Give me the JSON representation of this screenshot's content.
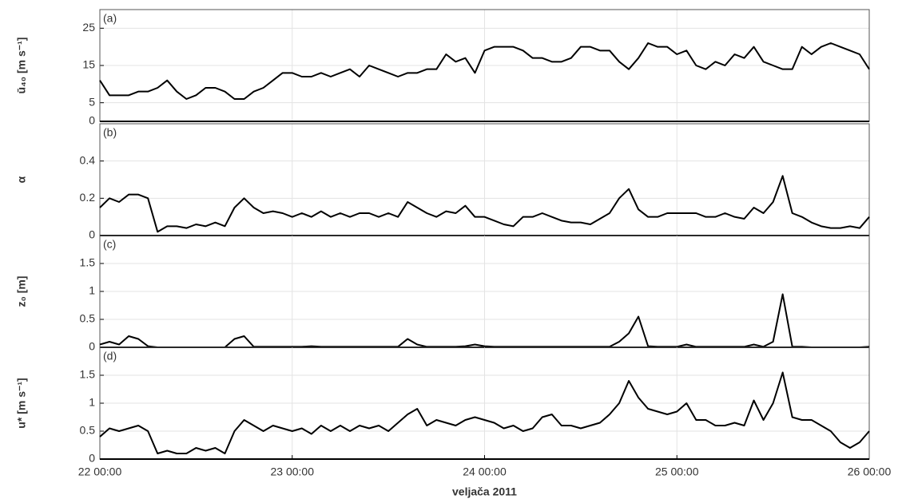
{
  "chart_data": [
    {
      "type": "line",
      "panel_label": "(a)",
      "ylabel": "ū₄₀ [m s⁻¹]",
      "color": "#000000",
      "grid": true,
      "ylim": [
        0,
        30
      ],
      "yticks": [
        0,
        5,
        15,
        25
      ],
      "xlim": [
        22,
        26
      ],
      "xticks": [
        22,
        23,
        24,
        25,
        26
      ],
      "x": [
        22,
        22.05,
        22.1,
        22.15,
        22.2,
        22.25,
        22.3,
        22.35,
        22.4,
        22.45,
        22.5,
        22.55,
        22.6,
        22.65,
        22.7,
        22.75,
        22.8,
        22.85,
        22.9,
        22.95,
        23,
        23.05,
        23.1,
        23.15,
        23.2,
        23.25,
        23.3,
        23.35,
        23.4,
        23.45,
        23.5,
        23.55,
        23.6,
        23.65,
        23.7,
        23.75,
        23.8,
        23.85,
        23.9,
        23.95,
        24,
        24.05,
        24.1,
        24.15,
        24.2,
        24.25,
        24.3,
        24.35,
        24.4,
        24.45,
        24.5,
        24.55,
        24.6,
        24.65,
        24.7,
        24.75,
        24.8,
        24.85,
        24.9,
        24.95,
        25,
        25.05,
        25.1,
        25.15,
        25.2,
        25.25,
        25.3,
        25.35,
        25.4,
        25.45,
        25.5,
        25.55,
        25.6,
        25.65,
        25.7,
        25.75,
        25.8,
        25.85,
        25.9,
        25.95,
        26
      ],
      "values": [
        11,
        7,
        7,
        7,
        8,
        8,
        9,
        11,
        8,
        6,
        7,
        9,
        9,
        8,
        6,
        6,
        8,
        9,
        11,
        13,
        13,
        12,
        12,
        13,
        12,
        13,
        14,
        12,
        15,
        14,
        13,
        12,
        13,
        13,
        14,
        14,
        18,
        16,
        17,
        13,
        19,
        20,
        20,
        20,
        19,
        17,
        17,
        16,
        16,
        17,
        20,
        20,
        19,
        19,
        16,
        14,
        17,
        21,
        20,
        20,
        18,
        19,
        15,
        14,
        16,
        15,
        18,
        17,
        20,
        16,
        15,
        14,
        14,
        20,
        18,
        20,
        21,
        20,
        19,
        18,
        14
      ]
    },
    {
      "type": "line",
      "panel_label": "(b)",
      "ylabel": "α",
      "color": "#000000",
      "grid": true,
      "ylim": [
        0,
        0.6
      ],
      "yticks": [
        0,
        0.2,
        0.4
      ],
      "xlim": [
        22,
        26
      ],
      "xticks": [
        22,
        23,
        24,
        25,
        26
      ],
      "x": [
        22,
        22.05,
        22.1,
        22.15,
        22.2,
        22.25,
        22.3,
        22.35,
        22.4,
        22.45,
        22.5,
        22.55,
        22.6,
        22.65,
        22.7,
        22.75,
        22.8,
        22.85,
        22.9,
        22.95,
        23,
        23.05,
        23.1,
        23.15,
        23.2,
        23.25,
        23.3,
        23.35,
        23.4,
        23.45,
        23.5,
        23.55,
        23.6,
        23.65,
        23.7,
        23.75,
        23.8,
        23.85,
        23.9,
        23.95,
        24,
        24.05,
        24.1,
        24.15,
        24.2,
        24.25,
        24.3,
        24.35,
        24.4,
        24.45,
        24.5,
        24.55,
        24.6,
        24.65,
        24.7,
        24.75,
        24.8,
        24.85,
        24.9,
        24.95,
        25,
        25.05,
        25.1,
        25.15,
        25.2,
        25.25,
        25.3,
        25.35,
        25.4,
        25.45,
        25.5,
        25.55,
        25.6,
        25.65,
        25.7,
        25.75,
        25.8,
        25.85,
        25.9,
        25.95,
        26
      ],
      "values": [
        0.15,
        0.2,
        0.18,
        0.22,
        0.22,
        0.2,
        0.02,
        0.05,
        0.05,
        0.04,
        0.06,
        0.05,
        0.07,
        0.05,
        0.15,
        0.2,
        0.15,
        0.12,
        0.13,
        0.12,
        0.1,
        0.12,
        0.1,
        0.13,
        0.1,
        0.12,
        0.1,
        0.12,
        0.12,
        0.1,
        0.12,
        0.1,
        0.18,
        0.15,
        0.12,
        0.1,
        0.13,
        0.12,
        0.16,
        0.1,
        0.1,
        0.08,
        0.06,
        0.05,
        0.1,
        0.1,
        0.12,
        0.1,
        0.08,
        0.07,
        0.07,
        0.06,
        0.09,
        0.12,
        0.2,
        0.25,
        0.14,
        0.1,
        0.1,
        0.12,
        0.12,
        0.12,
        0.12,
        0.1,
        0.1,
        0.12,
        0.1,
        0.09,
        0.15,
        0.12,
        0.18,
        0.32,
        0.12,
        0.1,
        0.07,
        0.05,
        0.04,
        0.04,
        0.05,
        0.04,
        0.1
      ]
    },
    {
      "type": "line",
      "panel_label": "(c)",
      "ylabel": "z₀ [m]",
      "color": "#000000",
      "grid": true,
      "ylim": [
        0,
        2
      ],
      "yticks": [
        0,
        0.5,
        1,
        1.5
      ],
      "xlim": [
        22,
        26
      ],
      "xticks": [
        22,
        23,
        24,
        25,
        26
      ],
      "x": [
        22,
        22.05,
        22.1,
        22.15,
        22.2,
        22.25,
        22.3,
        22.35,
        22.4,
        22.45,
        22.5,
        22.55,
        22.6,
        22.65,
        22.7,
        22.75,
        22.8,
        22.85,
        22.9,
        22.95,
        23,
        23.05,
        23.1,
        23.15,
        23.2,
        23.25,
        23.3,
        23.35,
        23.4,
        23.45,
        23.5,
        23.55,
        23.6,
        23.65,
        23.7,
        23.75,
        23.8,
        23.85,
        23.9,
        23.95,
        24,
        24.05,
        24.1,
        24.15,
        24.2,
        24.25,
        24.3,
        24.35,
        24.4,
        24.45,
        24.5,
        24.55,
        24.6,
        24.65,
        24.7,
        24.75,
        24.8,
        24.85,
        24.9,
        24.95,
        25,
        25.05,
        25.1,
        25.15,
        25.2,
        25.25,
        25.3,
        25.35,
        25.4,
        25.45,
        25.5,
        25.55,
        25.6,
        25.65,
        25.7,
        25.75,
        25.8,
        25.85,
        25.9,
        25.95,
        26
      ],
      "values": [
        0.05,
        0.1,
        0.05,
        0.2,
        0.15,
        0.02,
        0,
        0,
        0,
        0,
        0,
        0,
        0,
        0,
        0.15,
        0.2,
        0.01,
        0.01,
        0.01,
        0.01,
        0.01,
        0.01,
        0.02,
        0.01,
        0.01,
        0.01,
        0.01,
        0.01,
        0.01,
        0.01,
        0.01,
        0.01,
        0.15,
        0.05,
        0.01,
        0.01,
        0.01,
        0.01,
        0.02,
        0.05,
        0.02,
        0.01,
        0.01,
        0.01,
        0.01,
        0.01,
        0.01,
        0.01,
        0.01,
        0.01,
        0.01,
        0.01,
        0.01,
        0.01,
        0.1,
        0.25,
        0.55,
        0.02,
        0.01,
        0.01,
        0.01,
        0.05,
        0.01,
        0.01,
        0.01,
        0.01,
        0.01,
        0.01,
        0.05,
        0.01,
        0.1,
        0.95,
        0.01,
        0.01,
        0,
        0,
        0,
        0,
        0,
        0,
        0.01
      ]
    },
    {
      "type": "line",
      "panel_label": "(d)",
      "ylabel": "u* [m s⁻¹]",
      "xlabel": "veljača 2011",
      "color": "#000000",
      "grid": true,
      "ylim": [
        0,
        2
      ],
      "yticks": [
        0,
        0.5,
        1,
        1.5
      ],
      "xlim": [
        22,
        26
      ],
      "xticks": [
        {
          "value": 22,
          "label": "22 00:00"
        },
        {
          "value": 23,
          "label": "23 00:00"
        },
        {
          "value": 24,
          "label": "24 00:00"
        },
        {
          "value": 25,
          "label": "25 00:00"
        },
        {
          "value": 26,
          "label": "26 00:00"
        }
      ],
      "x": [
        22,
        22.05,
        22.1,
        22.15,
        22.2,
        22.25,
        22.3,
        22.35,
        22.4,
        22.45,
        22.5,
        22.55,
        22.6,
        22.65,
        22.7,
        22.75,
        22.8,
        22.85,
        22.9,
        22.95,
        23,
        23.05,
        23.1,
        23.15,
        23.2,
        23.25,
        23.3,
        23.35,
        23.4,
        23.45,
        23.5,
        23.55,
        23.6,
        23.65,
        23.7,
        23.75,
        23.8,
        23.85,
        23.9,
        23.95,
        24,
        24.05,
        24.1,
        24.15,
        24.2,
        24.25,
        24.3,
        24.35,
        24.4,
        24.45,
        24.5,
        24.55,
        24.6,
        24.65,
        24.7,
        24.75,
        24.8,
        24.85,
        24.9,
        24.95,
        25,
        25.05,
        25.1,
        25.15,
        25.2,
        25.25,
        25.3,
        25.35,
        25.4,
        25.45,
        25.5,
        25.55,
        25.6,
        25.65,
        25.7,
        25.75,
        25.8,
        25.85,
        25.9,
        25.95,
        26
      ],
      "values": [
        0.4,
        0.55,
        0.5,
        0.55,
        0.6,
        0.5,
        0.1,
        0.15,
        0.1,
        0.1,
        0.2,
        0.15,
        0.2,
        0.1,
        0.5,
        0.7,
        0.6,
        0.5,
        0.6,
        0.55,
        0.5,
        0.55,
        0.45,
        0.6,
        0.5,
        0.6,
        0.5,
        0.6,
        0.55,
        0.6,
        0.5,
        0.65,
        0.8,
        0.9,
        0.6,
        0.7,
        0.65,
        0.6,
        0.7,
        0.75,
        0.7,
        0.65,
        0.55,
        0.6,
        0.5,
        0.55,
        0.75,
        0.8,
        0.6,
        0.6,
        0.55,
        0.6,
        0.65,
        0.8,
        1.0,
        1.4,
        1.1,
        0.9,
        0.85,
        0.8,
        0.85,
        1.0,
        0.7,
        0.7,
        0.6,
        0.6,
        0.65,
        0.6,
        1.05,
        0.7,
        1.0,
        1.55,
        0.75,
        0.7,
        0.7,
        0.6,
        0.5,
        0.3,
        0.2,
        0.3,
        0.5
      ]
    }
  ]
}
